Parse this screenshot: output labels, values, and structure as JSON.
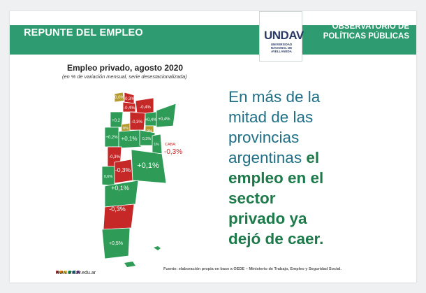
{
  "banner": {
    "title": "REPUNTE DEL EMPLEO",
    "observatorio_line1": "OBSERVATORIO DE",
    "observatorio_line2": "POLÍTICAS PÚBLICAS"
  },
  "logo": {
    "word": "UNDAV",
    "sub_line1": "UNIVERSIDAD",
    "sub_line2": "NACIONAL DE",
    "sub_line3": "AVELLANEDA"
  },
  "map": {
    "title": "Empleo privado, agosto 2020",
    "subtitle": "(en % de variación mensual, serie desestacionalizada)",
    "caba_label": "CABA:",
    "caba_value": "-0,3%",
    "legend_colors": {
      "positive": "#2e9c56",
      "negative": "#c62828",
      "neutral": "#b59a2c"
    },
    "provinces": [
      {
        "value": "0,0%"
      },
      {
        "value": "-0,3%"
      },
      {
        "value": "-0,4%"
      },
      {
        "value": "-0,4%"
      },
      {
        "value": "+0,2"
      },
      {
        "value": "0%"
      },
      {
        "value": "-0,3%"
      },
      {
        "value": "+0,4%"
      },
      {
        "value": "+0,4%"
      },
      {
        "value": "0%"
      },
      {
        "value": "+0,2%"
      },
      {
        "value": "+0,1%"
      },
      {
        "value": "0,3%"
      },
      {
        "value": "1%"
      },
      {
        "value": "-0,3%"
      },
      {
        "value": "0,6%"
      },
      {
        "value": "-0,3%"
      },
      {
        "value": "+0,1%"
      },
      {
        "value": "+0,1%"
      },
      {
        "value": "-0,3%"
      },
      {
        "value": "+0,5%"
      }
    ]
  },
  "headline": {
    "line1": "En más de la",
    "line2": "mitad de las",
    "line3": "provincias",
    "line4_regular": "argentinas",
    "line4_bold": "el",
    "line5": "empleo en el",
    "line6": "sector",
    "line7": "privado ya",
    "line8": "dejó de caer."
  },
  "footer": {
    "url": "www.undav.edu.ar",
    "source": "Fuente: elaboración propia en base a OEDE – Ministerio de Trabajo, Empleo y Seguridad Social.",
    "dot_colors": [
      "#d9282f",
      "#f39200",
      "#ffd400",
      "#2e9c56",
      "#1f6f86",
      "#6b3f98"
    ]
  }
}
